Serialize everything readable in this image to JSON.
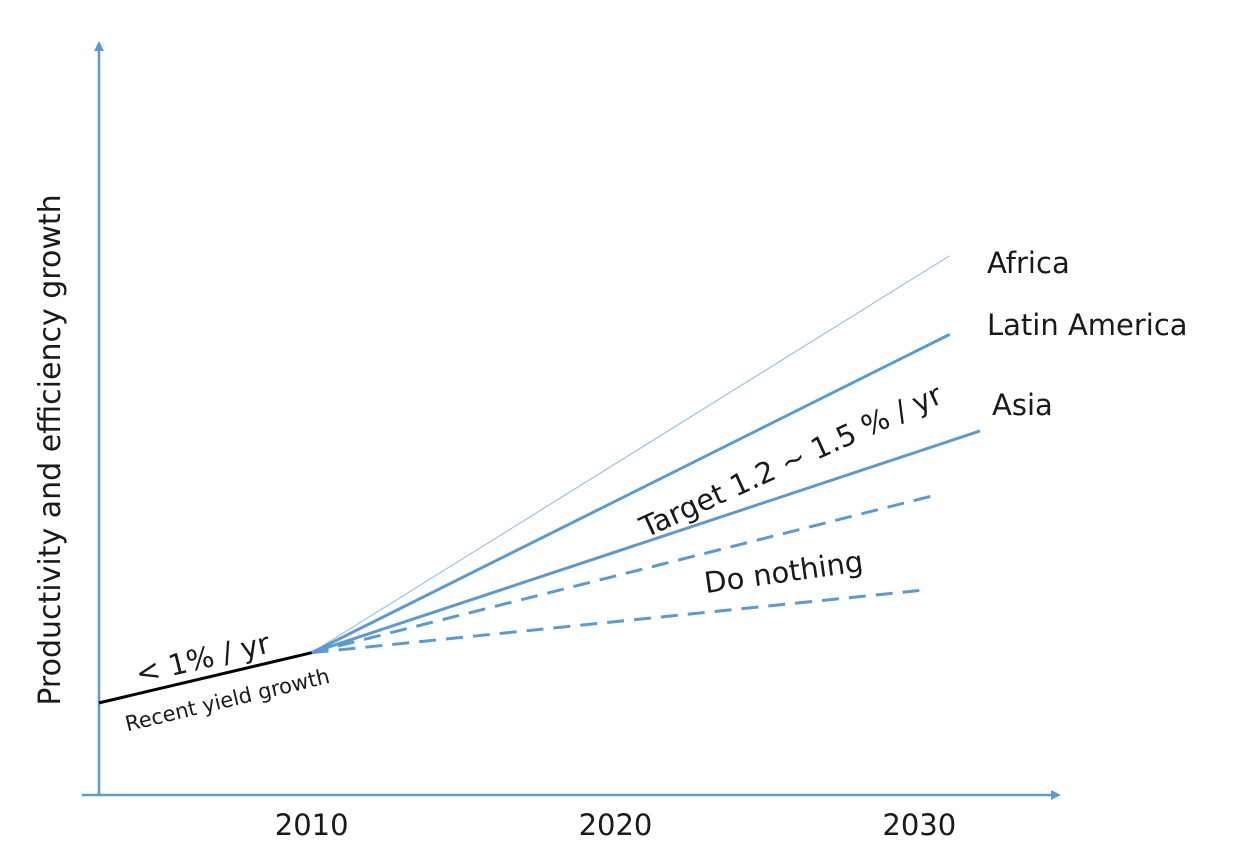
{
  "chart_data": {
    "type": "line",
    "title": "",
    "ylabel": "Productivity and efficiency growth",
    "xlabel": "",
    "x_ticks": [
      "2010",
      "2020",
      "2030"
    ],
    "xlim": [
      2003,
      2034.5
    ],
    "ylim": [
      0,
      100
    ],
    "grid": false,
    "colors": {
      "axis": "#5b9bd5",
      "series": "#5b9bd5",
      "africa": "#9dc3e6",
      "recent": "#000000"
    },
    "series": [
      {
        "name": "Recent yield growth",
        "style": "solid",
        "points": [
          [
            2003,
            12.3
          ],
          [
            2010,
            19.0
          ]
        ]
      },
      {
        "name": "Africa",
        "style": "thin",
        "points": [
          [
            2010,
            19.0
          ],
          [
            2031,
            72.0
          ]
        ]
      },
      {
        "name": "Latin America",
        "style": "solid",
        "points": [
          [
            2010,
            19.0
          ],
          [
            2031,
            61.5
          ]
        ]
      },
      {
        "name": "Asia",
        "style": "solid",
        "points": [
          [
            2010,
            19.0
          ],
          [
            2032,
            48.6
          ]
        ]
      },
      {
        "name": "",
        "style": "dashed",
        "points": [
          [
            2010,
            19.0
          ],
          [
            2030.5,
            40.0
          ]
        ]
      },
      {
        "name": "",
        "style": "dashed",
        "points": [
          [
            2010,
            19.0
          ],
          [
            2030,
            27.3
          ]
        ]
      }
    ],
    "annotations": {
      "africa": "Africa",
      "latin_america": "Latin America",
      "asia": "Asia",
      "target": "Target 1.2 ~ 1.5 % / yr",
      "do_nothing": "Do nothing",
      "recent_rate": "< 1% / yr",
      "recent_label": "Recent yield growth"
    }
  }
}
